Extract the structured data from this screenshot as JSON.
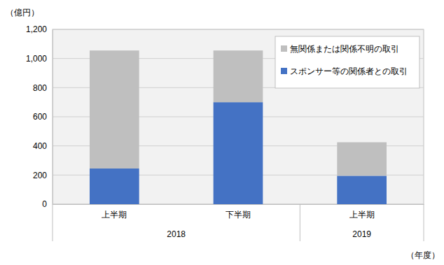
{
  "chart_data": {
    "type": "bar",
    "stacked": true,
    "y_label": "（億円）",
    "x_label": "（年度）",
    "categories": [
      "上半期",
      "下半期",
      "上半期"
    ],
    "x_groups": [
      {
        "label": "2018",
        "span": 2
      },
      {
        "label": "2019",
        "span": 1
      }
    ],
    "series": [
      {
        "name": "スポンサー等の関係者との取引",
        "color": "#4472c4",
        "values": [
          245,
          700,
          195
        ]
      },
      {
        "name": "無関係または関係不明の取引",
        "color": "#bfbfbf",
        "values": [
          810,
          355,
          230
        ]
      }
    ],
    "ylim": [
      0,
      1200
    ],
    "yticks": [
      0,
      200,
      400,
      600,
      800,
      {
        "value": 1000,
        "label": "1,000"
      },
      {
        "value": 1200,
        "label": "1,200"
      }
    ],
    "grid": true,
    "legend": "upper right"
  }
}
